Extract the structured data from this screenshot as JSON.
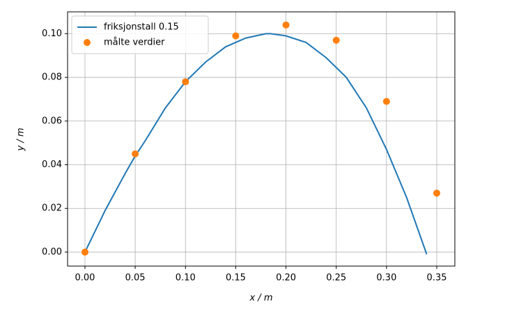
{
  "chart_data": {
    "type": "line",
    "xlabel": "x / m",
    "ylabel": "y / m",
    "xlim": [
      -0.0173,
      0.368
    ],
    "ylim": [
      -0.0064,
      0.11
    ],
    "xticks": [
      {
        "value": 0,
        "label": "0.00"
      },
      {
        "value": 0.05,
        "label": "0.05"
      },
      {
        "value": 0.1,
        "label": "0.10"
      },
      {
        "value": 0.15,
        "label": "0.15"
      },
      {
        "value": 0.2,
        "label": "0.20"
      },
      {
        "value": 0.25,
        "label": "0.25"
      },
      {
        "value": 0.3,
        "label": "0.30"
      },
      {
        "value": 0.35,
        "label": "0.35"
      }
    ],
    "yticks": [
      {
        "value": 0,
        "label": "0.00"
      },
      {
        "value": 0.02,
        "label": "0.02"
      },
      {
        "value": 0.04,
        "label": "0.04"
      },
      {
        "value": 0.06,
        "label": "0.06"
      },
      {
        "value": 0.08,
        "label": "0.08"
      },
      {
        "value": 0.1,
        "label": "0.10"
      }
    ],
    "grid": true,
    "legend": "upper-left",
    "series": [
      {
        "name": "friksjonstall 0.15",
        "type": "line",
        "color": "#1f77b4",
        "x": [
          0,
          0.02,
          0.04,
          0.05,
          0.06,
          0.08,
          0.1,
          0.12,
          0.14,
          0.16,
          0.18,
          0.185,
          0.2,
          0.22,
          0.24,
          0.26,
          0.28,
          0.3,
          0.32,
          0.34
        ],
        "values": [
          0,
          0.019,
          0.036,
          0.044,
          0.051,
          0.066,
          0.078,
          0.087,
          0.094,
          0.098,
          0.1,
          0.1,
          0.099,
          0.096,
          0.089,
          0.08,
          0.066,
          0.047,
          0.025,
          -0.001
        ]
      },
      {
        "name": "målte verdier",
        "type": "scatter",
        "color": "#ff7f0e",
        "x": [
          0,
          0.05,
          0.1,
          0.15,
          0.2,
          0.25,
          0.3,
          0.35
        ],
        "values": [
          0,
          0.045,
          0.078,
          0.099,
          0.104,
          0.097,
          0.069,
          0.027
        ]
      }
    ]
  }
}
